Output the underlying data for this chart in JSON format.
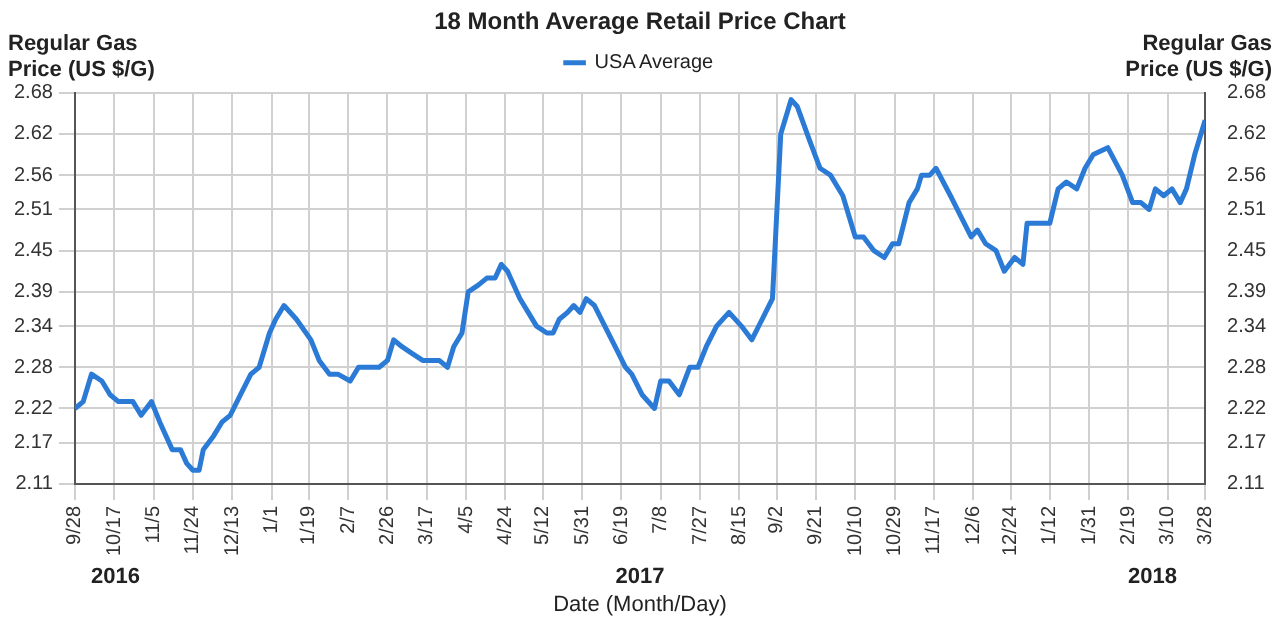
{
  "chart_data": {
    "type": "line",
    "title": "18 Month Average Retail Price Chart",
    "xlabel": "Date (Month/Day)",
    "ylabel": "Regular Gas Price (US $/G)",
    "y2label": "Regular Gas Price (US $/G)",
    "x": [
      "2016-09-28",
      "2016-10-02",
      "2016-10-06",
      "2016-10-11",
      "2016-10-15",
      "2016-10-19",
      "2016-10-23",
      "2016-10-26",
      "2016-10-30",
      "2016-11-04",
      "2016-11-08",
      "2016-11-14",
      "2016-11-18",
      "2016-11-21",
      "2016-11-24",
      "2016-11-27",
      "2016-11-29",
      "2016-12-04",
      "2016-12-08",
      "2016-12-12",
      "2016-12-17",
      "2016-12-22",
      "2016-12-26",
      "2016-12-31",
      "2017-01-03",
      "2017-01-07",
      "2017-01-13",
      "2017-01-20",
      "2017-01-24",
      "2017-01-29",
      "2017-02-02",
      "2017-02-08",
      "2017-02-12",
      "2017-02-17",
      "2017-02-22",
      "2017-02-26",
      "2017-03-01",
      "2017-03-05",
      "2017-03-10",
      "2017-03-15",
      "2017-03-18",
      "2017-03-23",
      "2017-03-27",
      "2017-03-30",
      "2017-04-03",
      "2017-04-06",
      "2017-04-11",
      "2017-04-15",
      "2017-04-19",
      "2017-04-22",
      "2017-04-25",
      "2017-05-01",
      "2017-05-05",
      "2017-05-09",
      "2017-05-14",
      "2017-05-17",
      "2017-05-20",
      "2017-05-24",
      "2017-05-27",
      "2017-05-30",
      "2017-06-02",
      "2017-06-06",
      "2017-06-11",
      "2017-06-16",
      "2017-06-21",
      "2017-06-24",
      "2017-06-29",
      "2017-07-05",
      "2017-07-08",
      "2017-07-12",
      "2017-07-17",
      "2017-07-22",
      "2017-07-26",
      "2017-07-30",
      "2017-08-04",
      "2017-08-10",
      "2017-08-16",
      "2017-08-21",
      "2017-08-26",
      "2017-08-31",
      "2017-09-04",
      "2017-09-09",
      "2017-09-12",
      "2017-09-18",
      "2017-09-23",
      "2017-09-28",
      "2017-10-04",
      "2017-10-10",
      "2017-10-14",
      "2017-10-19",
      "2017-10-24",
      "2017-10-28",
      "2017-10-31",
      "2017-11-05",
      "2017-11-09",
      "2017-11-11",
      "2017-11-15",
      "2017-11-18",
      "2017-11-25",
      "2017-11-30",
      "2017-12-05",
      "2017-12-08",
      "2017-12-12",
      "2017-12-17",
      "2017-12-21",
      "2017-12-26",
      "2017-12-30",
      "2018-01-01",
      "2018-01-07",
      "2018-01-12",
      "2018-01-16",
      "2018-01-20",
      "2018-01-25",
      "2018-01-29",
      "2018-02-02",
      "2018-02-09",
      "2018-02-16",
      "2018-02-21",
      "2018-02-25",
      "2018-03-01",
      "2018-03-04",
      "2018-03-08",
      "2018-03-12",
      "2018-03-16",
      "2018-03-19",
      "2018-03-23",
      "2018-03-26",
      "2018-03-28"
    ],
    "series": [
      {
        "name": "USA Average",
        "color": "#2b7bd6",
        "values": [
          2.22,
          2.23,
          2.27,
          2.26,
          2.24,
          2.23,
          2.23,
          2.23,
          2.21,
          2.23,
          2.2,
          2.16,
          2.16,
          2.14,
          2.13,
          2.13,
          2.16,
          2.18,
          2.2,
          2.21,
          2.24,
          2.27,
          2.28,
          2.33,
          2.35,
          2.37,
          2.35,
          2.32,
          2.29,
          2.27,
          2.27,
          2.26,
          2.28,
          2.28,
          2.28,
          2.29,
          2.32,
          2.31,
          2.3,
          2.29,
          2.29,
          2.29,
          2.28,
          2.31,
          2.33,
          2.39,
          2.4,
          2.41,
          2.41,
          2.43,
          2.42,
          2.38,
          2.36,
          2.34,
          2.33,
          2.33,
          2.35,
          2.36,
          2.37,
          2.36,
          2.38,
          2.37,
          2.34,
          2.31,
          2.28,
          2.27,
          2.24,
          2.22,
          2.26,
          2.26,
          2.24,
          2.28,
          2.28,
          2.31,
          2.34,
          2.36,
          2.34,
          2.32,
          2.35,
          2.38,
          2.62,
          2.67,
          2.66,
          2.61,
          2.57,
          2.56,
          2.53,
          2.47,
          2.47,
          2.45,
          2.44,
          2.46,
          2.46,
          2.52,
          2.54,
          2.56,
          2.56,
          2.57,
          2.53,
          2.5,
          2.47,
          2.48,
          2.46,
          2.45,
          2.42,
          2.44,
          2.43,
          2.49,
          2.49,
          2.49,
          2.54,
          2.55,
          2.54,
          2.57,
          2.59,
          2.6,
          2.56,
          2.52,
          2.52,
          2.51,
          2.54,
          2.53,
          2.54,
          2.52,
          2.54,
          2.59,
          2.62,
          2.64
        ]
      }
    ],
    "xlim": [
      "2016-09-28",
      "2018-03-28"
    ],
    "xticks": [
      {
        "value": "2016-09-28",
        "label": "9/28"
      },
      {
        "value": "2016-10-17",
        "label": "10/17"
      },
      {
        "value": "2016-11-05",
        "label": "11/5"
      },
      {
        "value": "2016-11-24",
        "label": "11/24"
      },
      {
        "value": "2016-12-13",
        "label": "12/13"
      },
      {
        "value": "2017-01-01",
        "label": "1/1"
      },
      {
        "value": "2017-01-19",
        "label": "1/19"
      },
      {
        "value": "2017-02-07",
        "label": "2/7"
      },
      {
        "value": "2017-02-26",
        "label": "2/26"
      },
      {
        "value": "2017-03-17",
        "label": "3/17"
      },
      {
        "value": "2017-04-05",
        "label": "4/5"
      },
      {
        "value": "2017-04-24",
        "label": "4/24"
      },
      {
        "value": "2017-05-12",
        "label": "5/12"
      },
      {
        "value": "2017-05-31",
        "label": "5/31"
      },
      {
        "value": "2017-06-19",
        "label": "6/19"
      },
      {
        "value": "2017-07-08",
        "label": "7/8"
      },
      {
        "value": "2017-07-27",
        "label": "7/27"
      },
      {
        "value": "2017-08-15",
        "label": "8/15"
      },
      {
        "value": "2017-09-02",
        "label": "9/2"
      },
      {
        "value": "2017-09-21",
        "label": "9/21"
      },
      {
        "value": "2017-10-10",
        "label": "10/10"
      },
      {
        "value": "2017-10-29",
        "label": "10/29"
      },
      {
        "value": "2017-11-17",
        "label": "11/17"
      },
      {
        "value": "2017-12-06",
        "label": "12/6"
      },
      {
        "value": "2017-12-24",
        "label": "12/24"
      },
      {
        "value": "2018-01-12",
        "label": "1/12"
      },
      {
        "value": "2018-01-31",
        "label": "1/31"
      },
      {
        "value": "2018-02-19",
        "label": "2/19"
      },
      {
        "value": "2018-03-10",
        "label": "3/10"
      },
      {
        "value": "2018-03-28",
        "label": "3/28"
      }
    ],
    "ylim": [
      2.11,
      2.68
    ],
    "yticks": [
      2.11,
      2.17,
      2.22,
      2.28,
      2.34,
      2.39,
      2.45,
      2.51,
      2.56,
      2.62,
      2.68
    ],
    "y2lim": [
      2.11,
      2.68
    ],
    "y2ticks": [
      2.11,
      2.17,
      2.22,
      2.28,
      2.34,
      2.39,
      2.45,
      2.51,
      2.56,
      2.62,
      2.68
    ],
    "annotations": [
      "2016",
      "2017",
      "2018"
    ],
    "grid": true,
    "legend": "top"
  }
}
